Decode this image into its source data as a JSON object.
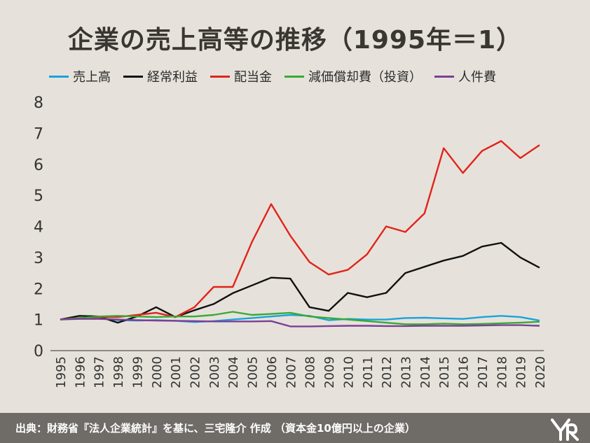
{
  "title": "企業の売上高等の推移（1995年＝1）",
  "footer": {
    "source": "出典：財務省『法人企業統計』を基に、三宅隆介 作成 （資本金10億円以上の企業）"
  },
  "chart_data": {
    "type": "line",
    "ylim": [
      0,
      8
    ],
    "yticks": [
      "0",
      "1",
      "2",
      "3",
      "4",
      "5",
      "6",
      "7",
      "8"
    ],
    "grid": false,
    "legend_position": "top",
    "categories": [
      "1995",
      "1996",
      "1997",
      "1998",
      "1999",
      "2000",
      "2001",
      "2002",
      "2003",
      "2004",
      "2005",
      "2006",
      "2007",
      "2008",
      "2009",
      "2010",
      "2011",
      "2012",
      "2013",
      "2014",
      "2015",
      "2016",
      "2017",
      "2018",
      "2019",
      "2020"
    ],
    "series": [
      {
        "name": "売上高",
        "color": "#1aa3dc",
        "values": [
          1.0,
          1.05,
          1.05,
          0.98,
          0.97,
          0.98,
          0.96,
          0.92,
          0.95,
          1.0,
          1.05,
          1.1,
          1.15,
          1.12,
          0.98,
          1.02,
          1.0,
          1.0,
          1.05,
          1.06,
          1.04,
          1.02,
          1.08,
          1.12,
          1.08,
          0.97
        ]
      },
      {
        "name": "経常利益",
        "color": "#111111",
        "values": [
          1.0,
          1.12,
          1.1,
          0.9,
          1.1,
          1.4,
          1.08,
          1.3,
          1.5,
          1.85,
          2.1,
          2.35,
          2.32,
          1.4,
          1.28,
          1.86,
          1.72,
          1.86,
          2.5,
          2.7,
          2.9,
          3.05,
          3.35,
          3.47,
          3.0,
          2.67
        ]
      },
      {
        "name": "配当金",
        "color": "#e2231a",
        "values": [
          1.0,
          1.05,
          1.08,
          1.08,
          1.15,
          1.22,
          1.08,
          1.4,
          2.05,
          2.05,
          3.5,
          4.72,
          3.7,
          2.85,
          2.45,
          2.6,
          3.1,
          4.0,
          3.82,
          4.42,
          6.52,
          5.72,
          6.43,
          6.75,
          6.2,
          6.62
        ]
      },
      {
        "name": "減価償却費（投資）",
        "color": "#39a935",
        "values": [
          1.0,
          1.05,
          1.1,
          1.12,
          1.1,
          1.08,
          1.1,
          1.1,
          1.15,
          1.25,
          1.15,
          1.18,
          1.22,
          1.1,
          1.05,
          1.0,
          0.95,
          0.9,
          0.85,
          0.85,
          0.87,
          0.85,
          0.86,
          0.88,
          0.9,
          0.93
        ]
      },
      {
        "name": "人件費",
        "color": "#7b3f98",
        "values": [
          1.0,
          1.02,
          1.02,
          1.0,
          0.98,
          0.97,
          0.96,
          0.95,
          0.94,
          0.94,
          0.94,
          0.95,
          0.78,
          0.78,
          0.79,
          0.8,
          0.8,
          0.79,
          0.79,
          0.8,
          0.8,
          0.8,
          0.81,
          0.82,
          0.82,
          0.8
        ]
      }
    ]
  }
}
